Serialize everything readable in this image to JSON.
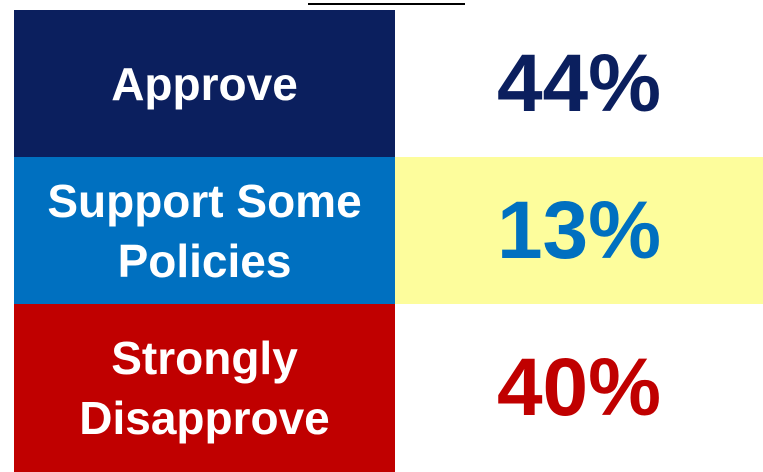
{
  "table": {
    "rows": [
      [
        "Approve",
        "44%"
      ],
      [
        "Support Some Policies",
        "13%"
      ],
      [
        "Strongly Disapprove",
        "40%"
      ]
    ]
  }
}
